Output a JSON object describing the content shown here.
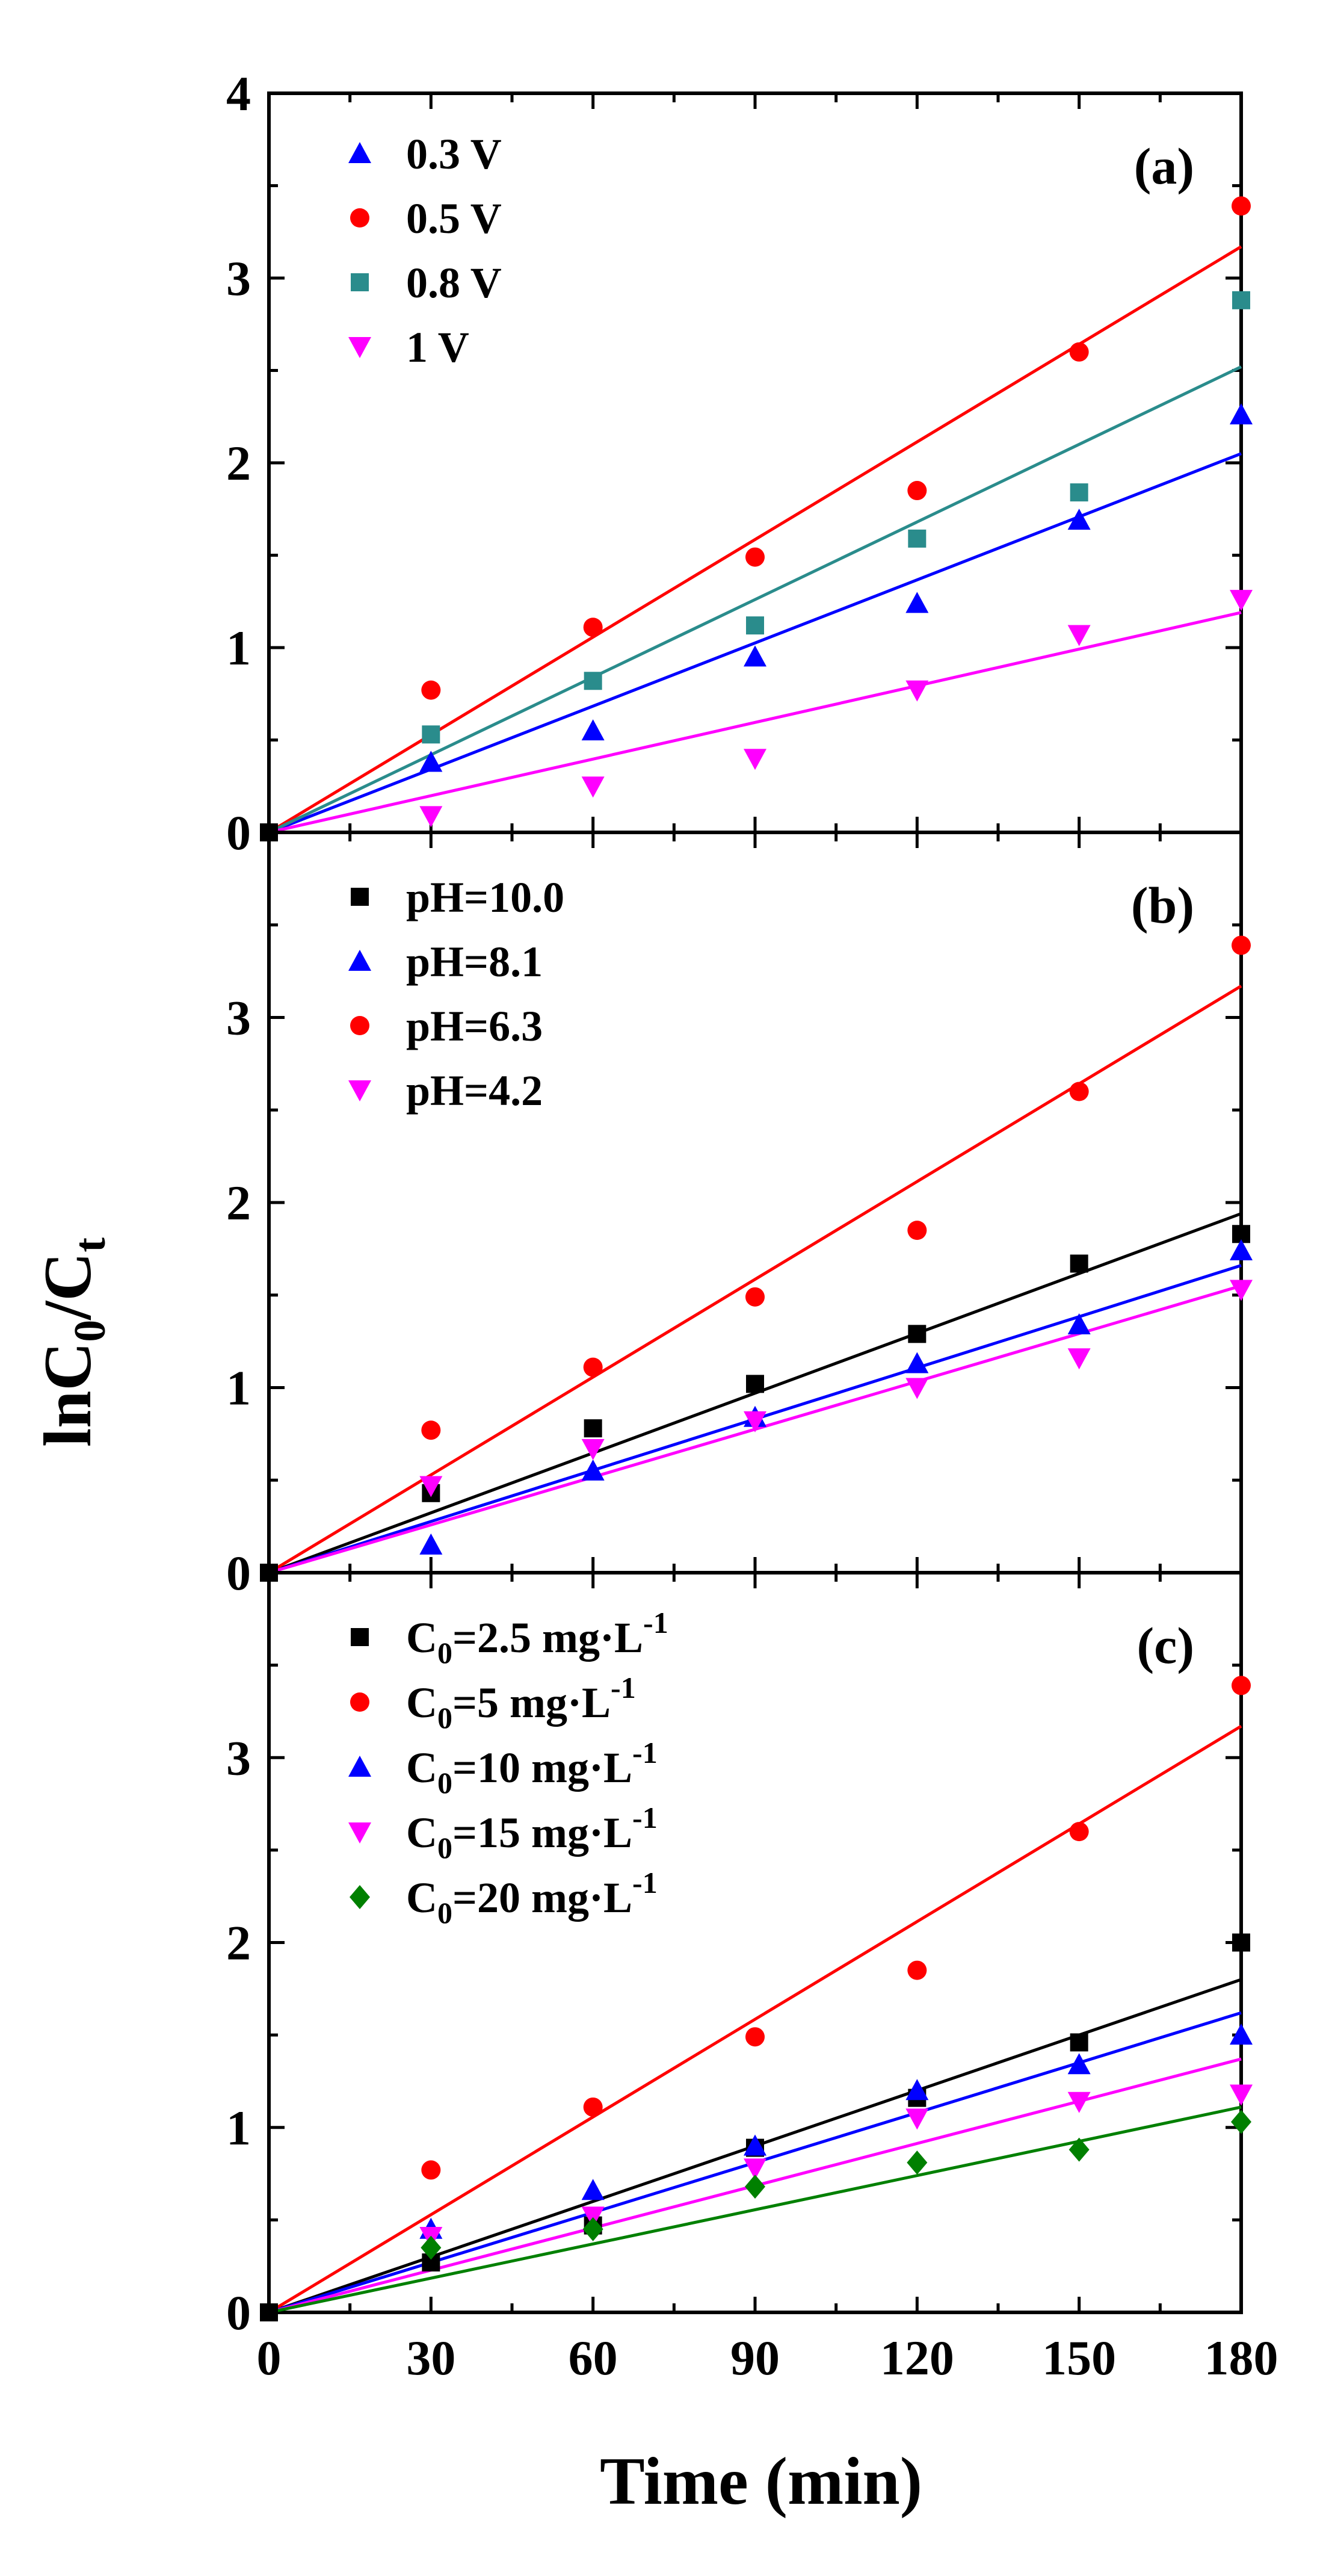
{
  "chart_data": {
    "type": "scatter",
    "xlabel": "Time (min)",
    "ylabel": {
      "base": "lnC",
      "sub0": "0",
      "slash": "/C",
      "sub1": "t"
    },
    "xlim": [
      0,
      180
    ],
    "xticks": [
      "0",
      "30",
      "60",
      "90",
      "120",
      "150",
      "180"
    ],
    "colors": {
      "black": "#000000",
      "red": "#ff0000",
      "blue": "#0000ff",
      "teal": "#2a8c8c",
      "magenta": "#ff00ff",
      "green": "#008000"
    },
    "panels": [
      {
        "label": "(a)",
        "ylim": [
          0,
          4
        ],
        "yticks": [
          "0",
          "1",
          "2",
          "3",
          "4"
        ],
        "series": [
          {
            "name": "0.3 V",
            "marker": "triangle-up",
            "color": "#0000ff",
            "x": [
              30,
              60,
              90,
              120,
              150,
              180
            ],
            "y": [
              0.38,
              0.55,
              0.95,
              1.24,
              1.69,
              2.26
            ],
            "fit_end": 2.05
          },
          {
            "name": "0.5 V",
            "marker": "circle",
            "color": "#ff0000",
            "x": [
              30,
              60,
              90,
              120,
              150,
              180
            ],
            "y": [
              0.77,
              1.11,
              1.49,
              1.85,
              2.6,
              3.39
            ],
            "fit_end": 3.17
          },
          {
            "name": "0.8 V",
            "marker": "square",
            "color": "#2a8c8c",
            "x": [
              30,
              60,
              90,
              120,
              150,
              180
            ],
            "y": [
              0.53,
              0.82,
              1.12,
              1.59,
              1.84,
              2.88
            ],
            "fit_end": 2.52
          },
          {
            "name": "1 V",
            "marker": "triangle-down",
            "color": "#ff00ff",
            "x": [
              30,
              60,
              90,
              120,
              150,
              180
            ],
            "y": [
              0.09,
              0.25,
              0.4,
              0.77,
              1.07,
              1.26
            ],
            "fit_end": 1.19
          }
        ]
      },
      {
        "label": "(b)",
        "ylim": [
          0,
          4
        ],
        "yticks": [
          "0",
          "1",
          "2",
          "3"
        ],
        "series": [
          {
            "name": "pH=10.0",
            "marker": "square",
            "color": "#000000",
            "x": [
              30,
              60,
              90,
              120,
              150,
              180
            ],
            "y": [
              0.43,
              0.78,
              1.02,
              1.29,
              1.67,
              1.83
            ],
            "fit_end": 1.94
          },
          {
            "name": "pH=8.1",
            "marker": "triangle-up",
            "color": "#0000ff",
            "x": [
              30,
              60,
              90,
              120,
              150,
              180
            ],
            "y": [
              0.15,
              0.55,
              0.84,
              1.13,
              1.34,
              1.74
            ],
            "fit_end": 1.66
          },
          {
            "name": "pH=6.3",
            "marker": "circle",
            "color": "#ff0000",
            "x": [
              30,
              60,
              90,
              120,
              150,
              180
            ],
            "y": [
              0.77,
              1.11,
              1.49,
              1.85,
              2.6,
              3.39
            ],
            "fit_end": 3.17
          },
          {
            "name": "pH=4.2",
            "marker": "triangle-down",
            "color": "#ff00ff",
            "x": [
              30,
              60,
              90,
              120,
              150,
              180
            ],
            "y": [
              0.47,
              0.67,
              0.82,
              1.0,
              1.16,
              1.53
            ],
            "fit_end": 1.55
          }
        ]
      },
      {
        "label": "(c)",
        "ylim": [
          0,
          4
        ],
        "yticks": [
          "0",
          "1",
          "2",
          "3"
        ],
        "series": [
          {
            "name": {
              "pre": "C",
              "sub": "0",
              "mid": "=2.5 mg·L",
              "sup": "-1"
            },
            "marker": "square",
            "color": "#000000",
            "x": [
              30,
              60,
              90,
              120,
              150,
              180
            ],
            "y": [
              0.27,
              0.47,
              0.89,
              1.16,
              1.46,
              2.0
            ],
            "fit_end": 1.8
          },
          {
            "name": {
              "pre": "C",
              "sub": "0",
              "mid": "=5 mg·L",
              "sup": "-1"
            },
            "marker": "circle",
            "color": "#ff0000",
            "x": [
              30,
              60,
              90,
              120,
              150,
              180
            ],
            "y": [
              0.77,
              1.11,
              1.49,
              1.85,
              2.6,
              3.39
            ],
            "fit_end": 3.17
          },
          {
            "name": {
              "pre": "C",
              "sub": "0",
              "mid": "=10 mg·L",
              "sup": "-1"
            },
            "marker": "triangle-up",
            "color": "#0000ff",
            "x": [
              30,
              60,
              90,
              120,
              150,
              180
            ],
            "y": [
              0.45,
              0.66,
              0.9,
              1.2,
              1.34,
              1.5
            ],
            "fit_end": 1.62
          },
          {
            "name": {
              "pre": "C",
              "sub": "0",
              "mid": "=15 mg·L",
              "sup": "-1"
            },
            "marker": "triangle-down",
            "color": "#ff00ff",
            "x": [
              30,
              60,
              90,
              120,
              150,
              180
            ],
            "y": [
              0.41,
              0.52,
              0.78,
              1.05,
              1.14,
              1.18
            ],
            "fit_end": 1.37
          },
          {
            "name": {
              "pre": "C",
              "sub": "0",
              "mid": "=20 mg·L",
              "sup": "-1"
            },
            "marker": "diamond",
            "color": "#008000",
            "x": [
              30,
              60,
              90,
              120,
              150,
              180
            ],
            "y": [
              0.35,
              0.45,
              0.68,
              0.81,
              0.88,
              1.03
            ],
            "fit_end": 1.11
          }
        ]
      }
    ]
  }
}
